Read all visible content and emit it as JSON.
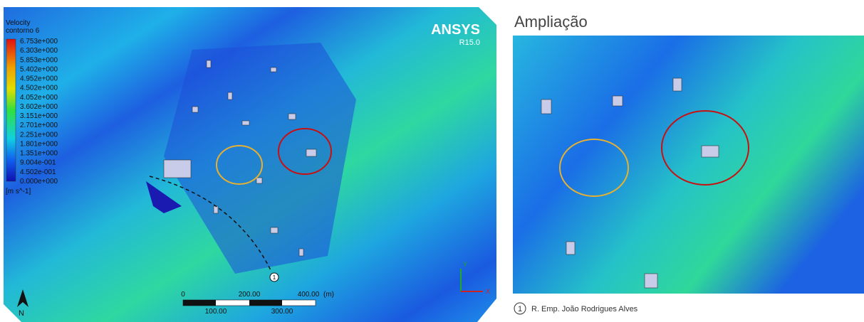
{
  "left_panel": {
    "legend_title": "Velocity",
    "legend_subtitle": "contorno 6",
    "legend_values": [
      "6.753e+000",
      "6.303e+000",
      "5.853e+000",
      "5.402e+000",
      "4.952e+000",
      "4.502e+000",
      "4.052e+000",
      "3.602e+000",
      "3.151e+000",
      "2.701e+000",
      "2.251e+000",
      "1.801e+000",
      "1.351e+000",
      "9.004e-001",
      "4.502e-001",
      "0.000e+000"
    ],
    "legend_unit": "[m s^-1]",
    "logo": "ANSYS",
    "version": "R15.0",
    "scale_top": [
      "0",
      "200.00",
      "400.00",
      "(m)"
    ],
    "scale_bottom": [
      "100.00",
      "300.00"
    ],
    "north": "N",
    "marker": "1",
    "axis_y": "Y",
    "axis_x": "X"
  },
  "right_panel": {
    "title": "Ampliação",
    "footnote_marker": "1",
    "footnote": "R. Emp. João Rodrigues Alves"
  }
}
